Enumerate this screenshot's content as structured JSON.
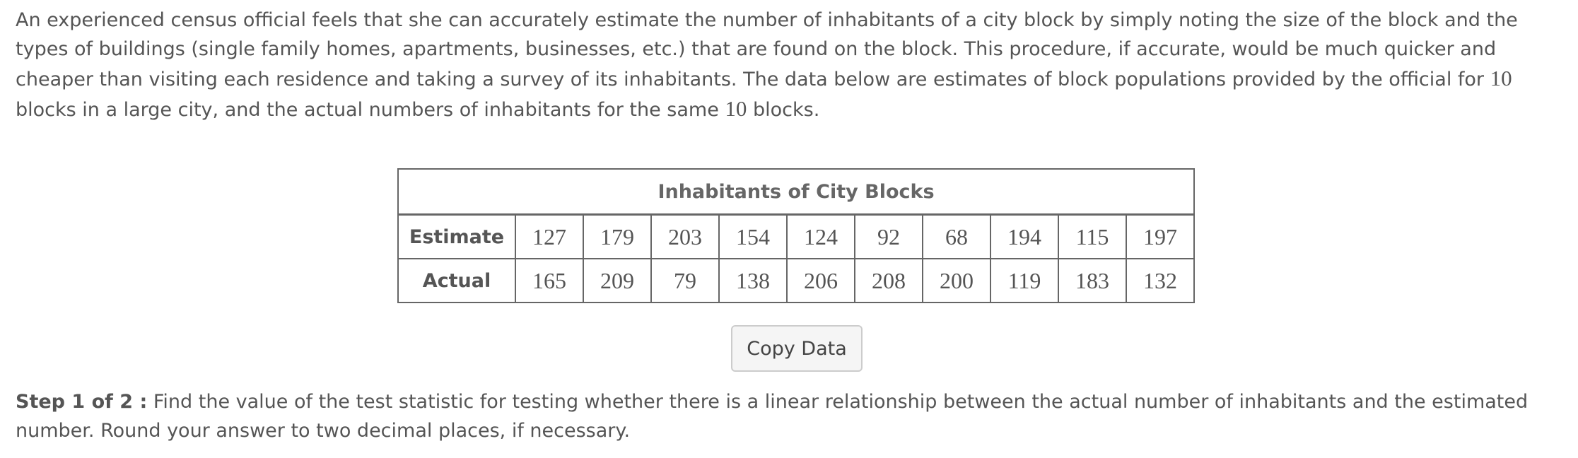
{
  "intro": {
    "part1": "An experienced census official feels that she can accurately estimate the number of inhabitants of a city block by simply noting the size of the block and the types of buildings (single family homes, apartments, businesses, etc.) that are found on the block. This procedure, if accurate, would be much quicker and cheaper than visiting each residence and taking a survey of its inhabitants. The data below are estimates of block populations provided by the official for ",
    "count1": "10",
    "part2": " blocks in a large city, and the actual numbers of inhabitants for the same ",
    "count2": "10",
    "part3": " blocks."
  },
  "table": {
    "title": "Inhabitants of City Blocks",
    "rows": [
      {
        "label": "Estimate",
        "values": [
          "127",
          "179",
          "203",
          "154",
          "124",
          "92",
          "68",
          "194",
          "115",
          "197"
        ]
      },
      {
        "label": "Actual",
        "values": [
          "165",
          "209",
          "79",
          "138",
          "206",
          "208",
          "200",
          "119",
          "183",
          "132"
        ]
      }
    ]
  },
  "copy_button": {
    "label": "Copy Data"
  },
  "step": {
    "label": "Step 1 of 2 :",
    "text": " Find the value of the test statistic for testing whether there is a linear relationship between the actual number of inhabitants and the estimated number. Round your answer to two decimal places, if necessary."
  },
  "colors": {
    "text": "#555555",
    "table_border": "#666666",
    "button_bg": "#f5f5f5",
    "button_border": "#cccccc"
  }
}
